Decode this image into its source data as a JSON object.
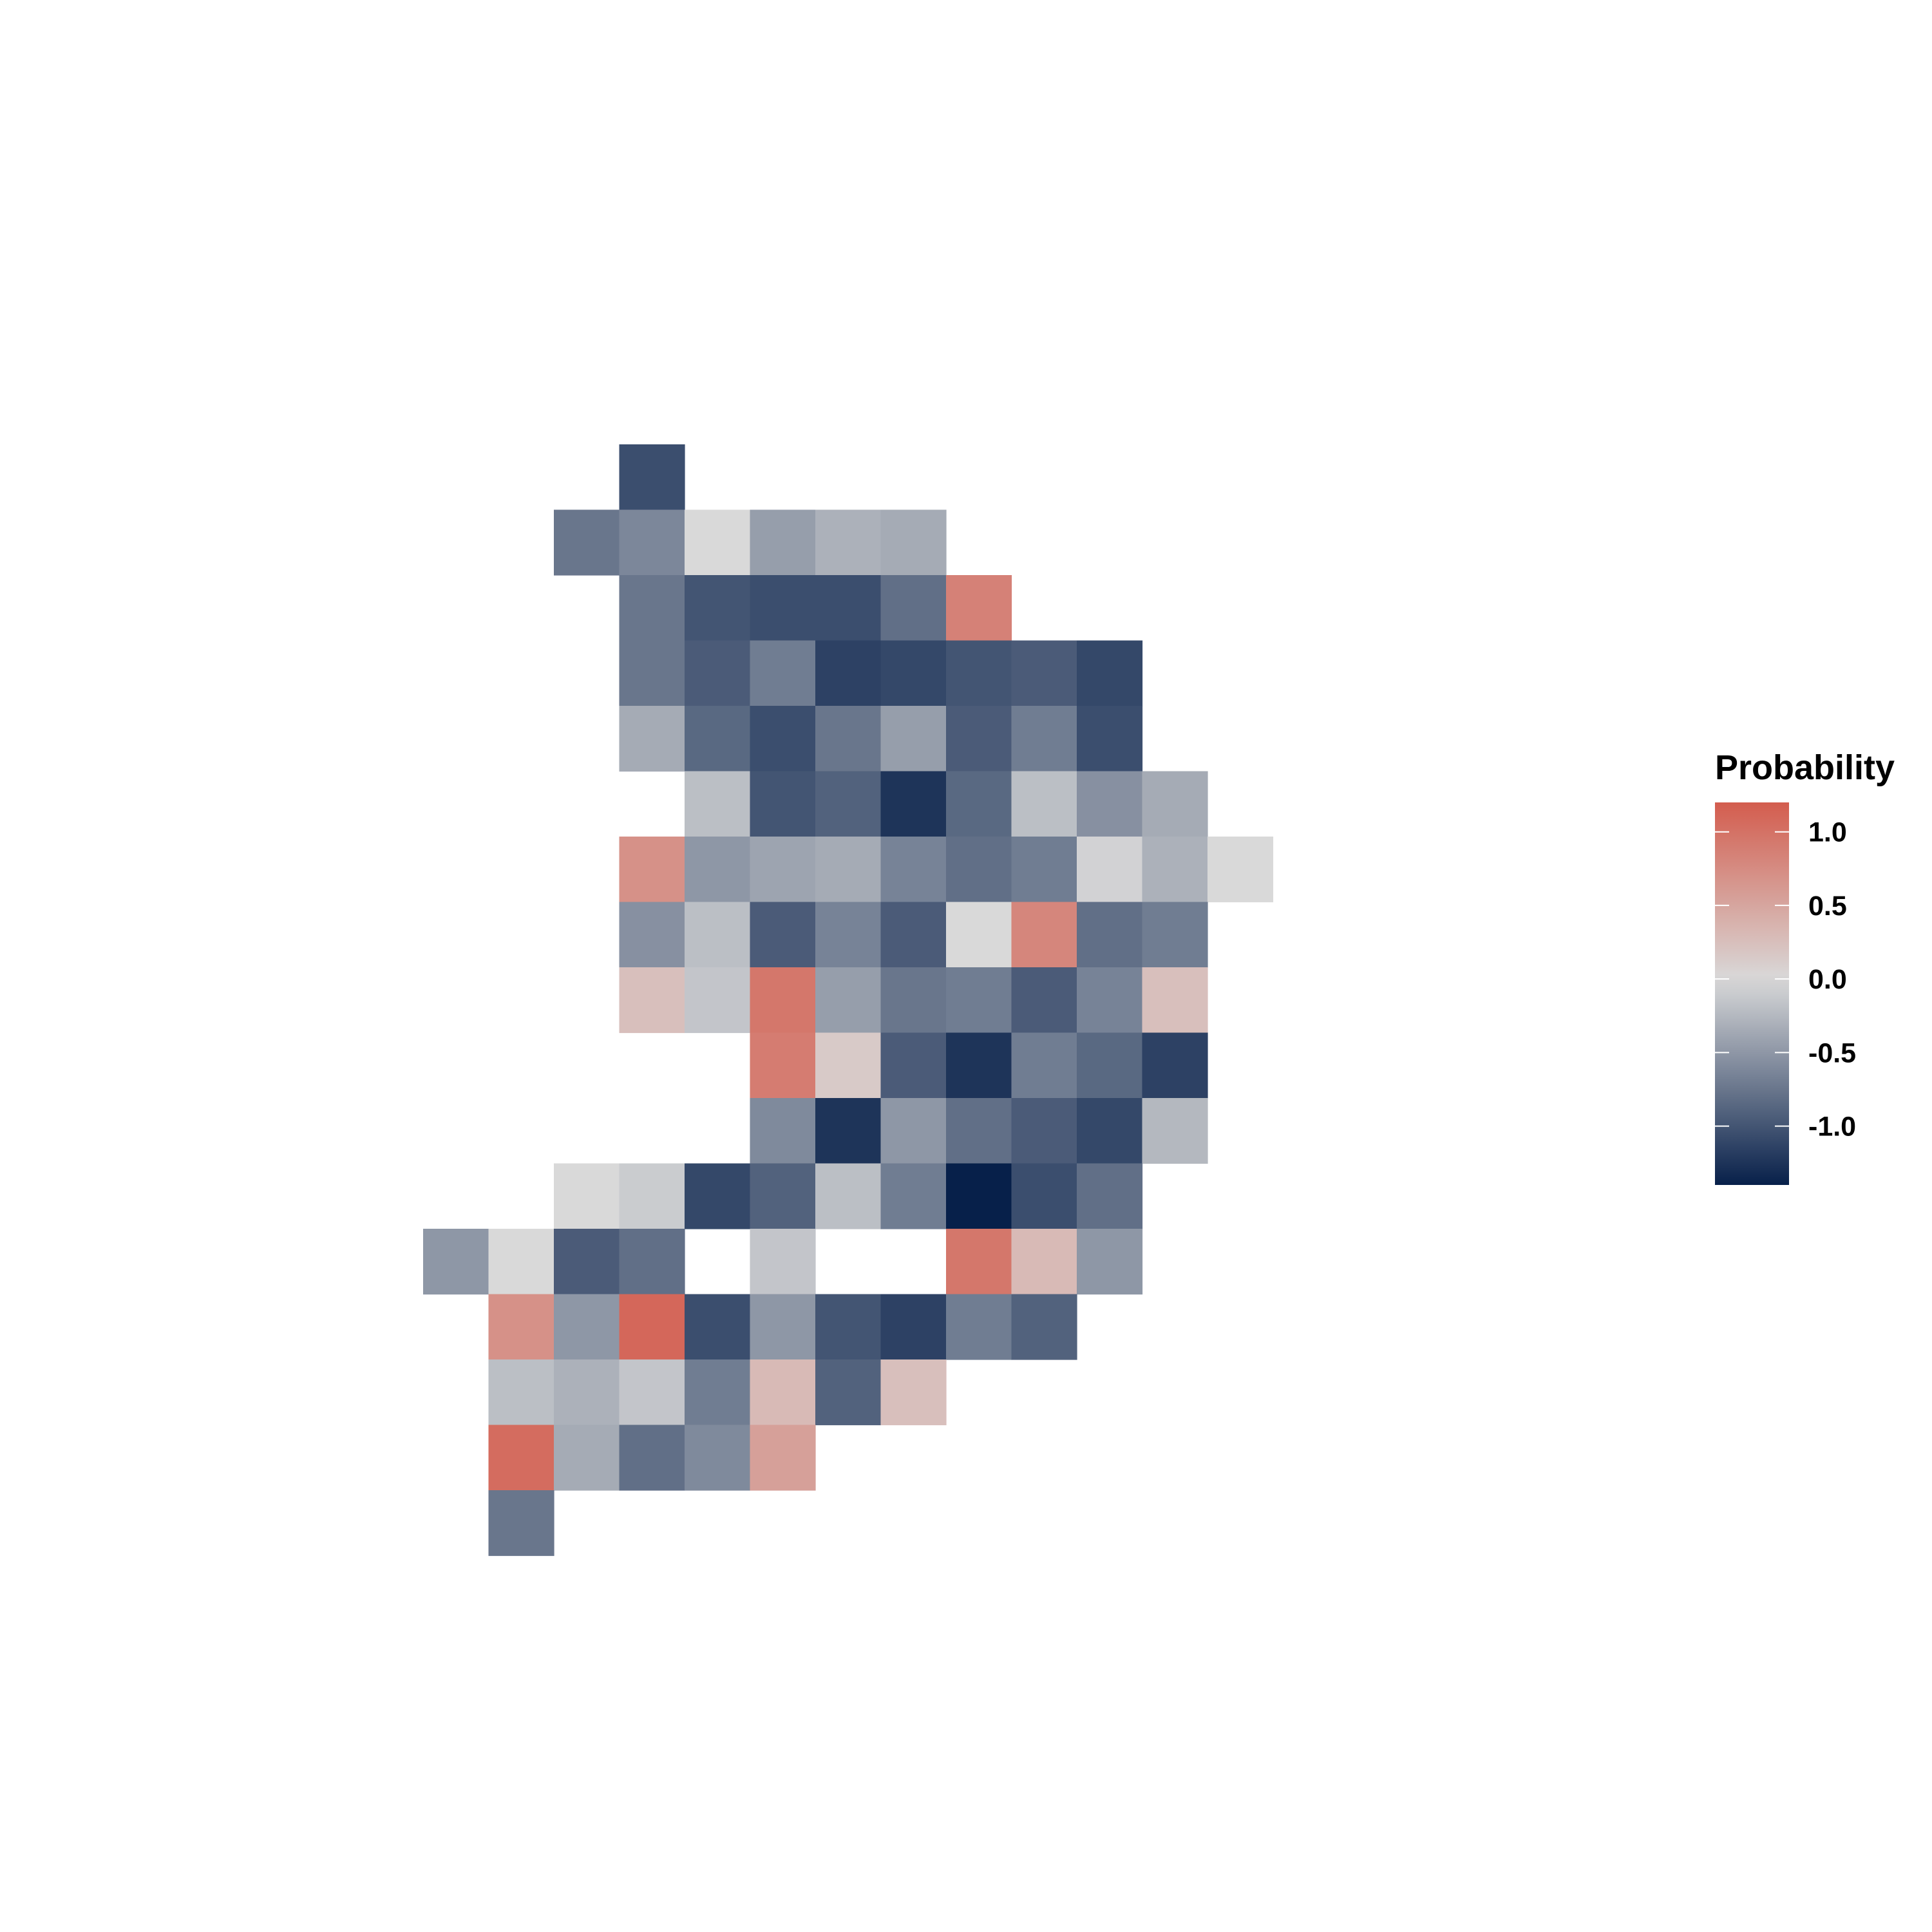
{
  "chart_data": {
    "type": "heatmap",
    "title": "",
    "xlabel": "",
    "ylabel": "",
    "axes_visible": false,
    "grid": false,
    "rows": 17,
    "cols": 13,
    "matrix": [
      [
        null,
        null,
        null,
        -1.05,
        null,
        null,
        null,
        null,
        null,
        null,
        null,
        null,
        null
      ],
      [
        null,
        null,
        -0.75,
        -0.62,
        0.0,
        -0.45,
        -0.3,
        -0.35,
        null,
        null,
        null,
        null,
        null
      ],
      [
        null,
        null,
        null,
        -0.75,
        -1.0,
        -1.05,
        -1.05,
        -0.8,
        0.85,
        null,
        null,
        null,
        null
      ],
      [
        null,
        null,
        null,
        -0.75,
        -0.95,
        -0.7,
        -1.15,
        -1.1,
        -1.0,
        -0.95,
        -1.1,
        null,
        null
      ],
      [
        null,
        null,
        null,
        -0.35,
        -0.85,
        -1.05,
        -0.75,
        -0.45,
        -0.95,
        -0.7,
        -1.05,
        null,
        null
      ],
      [
        null,
        null,
        null,
        null,
        -0.2,
        -1.0,
        -0.9,
        -1.25,
        -0.85,
        -0.2,
        -0.55,
        -0.35,
        null
      ],
      [
        null,
        null,
        null,
        0.7,
        -0.5,
        -0.4,
        -0.35,
        -0.65,
        -0.8,
        -0.7,
        -0.05,
        -0.3,
        0.0
      ],
      [
        null,
        null,
        null,
        -0.55,
        -0.2,
        -0.95,
        -0.65,
        -0.95,
        0.0,
        0.8,
        -0.8,
        -0.7,
        null
      ],
      [
        null,
        null,
        null,
        0.25,
        -0.15,
        0.95,
        -0.45,
        -0.75,
        -0.7,
        -0.95,
        -0.65,
        0.25,
        null
      ],
      [
        null,
        null,
        null,
        null,
        null,
        0.9,
        0.15,
        -0.95,
        -1.25,
        -0.7,
        -0.85,
        -1.15,
        null
      ],
      [
        null,
        null,
        null,
        null,
        null,
        -0.6,
        -1.25,
        -0.5,
        -0.8,
        -0.95,
        -1.1,
        -0.25,
        null
      ],
      [
        null,
        null,
        0.0,
        -0.1,
        -1.1,
        -0.9,
        -0.2,
        -0.7,
        -1.4,
        -1.05,
        -0.8,
        null,
        null
      ],
      [
        -0.5,
        0.0,
        -0.95,
        -0.8,
        null,
        -0.15,
        null,
        null,
        0.95,
        0.3,
        -0.5,
        null,
        null
      ],
      [
        null,
        0.7,
        -0.5,
        1.1,
        -1.05,
        -0.5,
        -1.0,
        -1.15,
        -0.7,
        -0.9,
        null,
        null,
        null
      ],
      [
        null,
        -0.2,
        -0.3,
        -0.15,
        -0.7,
        0.3,
        -0.9,
        0.25,
        null,
        null,
        null,
        null,
        null
      ],
      [
        null,
        1.05,
        -0.35,
        -0.8,
        -0.6,
        0.55,
        null,
        null,
        null,
        null,
        null,
        null,
        null
      ],
      [
        null,
        -0.75,
        null,
        null,
        null,
        null,
        null,
        null,
        null,
        null,
        null,
        null,
        null
      ]
    ],
    "color_scale": {
      "limits": [
        -1.4,
        1.2
      ],
      "low_color": "#07204a",
      "mid_color": "#d9d9d9",
      "high_color": "#d35d4e",
      "midpoint": 0.0
    },
    "legend": {
      "title": "Probability",
      "position": "right",
      "ticks": [
        1.0,
        0.5,
        0.0,
        -0.5,
        -1.0
      ],
      "tick_labels": [
        "1.0",
        "0.5",
        "0.0",
        "-0.5",
        "-1.0"
      ]
    }
  }
}
